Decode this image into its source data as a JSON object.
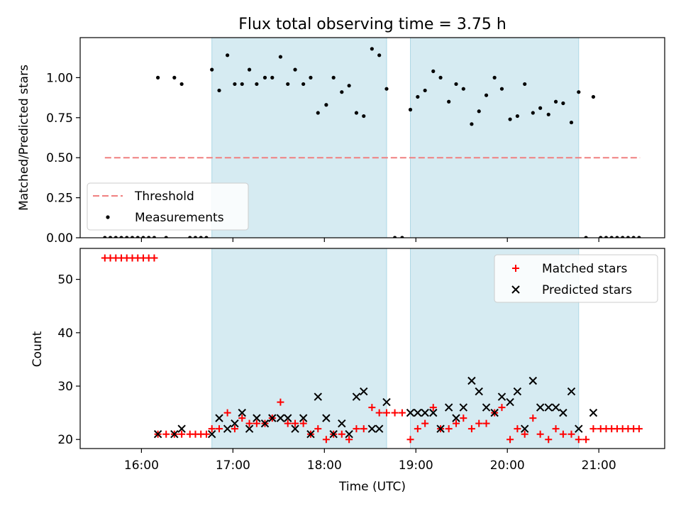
{
  "chart_data": [
    {
      "type": "scatter",
      "title": "Flux total observing time = 3.75 h",
      "ylabel": "Matched/Predicted stars",
      "xlim": [
        15.33,
        21.72
      ],
      "ylim": [
        0,
        1.25
      ],
      "y_ticks": [
        0.0,
        0.25,
        0.5,
        0.75,
        1.0
      ],
      "y_tick_labels": [
        "0.00",
        "0.25",
        "0.50",
        "0.75",
        "1.00"
      ],
      "shaded_intervals": [
        [
          16.77,
          18.68
        ],
        [
          18.94,
          20.78
        ]
      ],
      "legend": {
        "placement": "lower-left",
        "entries": [
          "Threshold",
          "Measurements"
        ]
      },
      "series": [
        {
          "name": "Threshold",
          "kind": "dashed-line",
          "color": "#f08080",
          "x": [
            15.6,
            21.45
          ],
          "y": [
            0.5,
            0.5
          ]
        },
        {
          "name": "Measurements",
          "kind": "points",
          "color": "#000000",
          "x": [
            15.6,
            15.66,
            15.72,
            15.78,
            15.84,
            15.9,
            15.96,
            16.02,
            16.08,
            16.14,
            16.18,
            16.27,
            16.36,
            16.44,
            16.53,
            16.59,
            16.65,
            16.71,
            16.77,
            16.85,
            16.94,
            17.02,
            17.1,
            17.18,
            17.26,
            17.35,
            17.43,
            17.52,
            17.6,
            17.68,
            17.77,
            17.85,
            17.93,
            18.02,
            18.1,
            18.19,
            18.27,
            18.35,
            18.43,
            18.52,
            18.6,
            18.68,
            18.77,
            18.85,
            18.94,
            19.02,
            19.1,
            19.19,
            19.27,
            19.36,
            19.44,
            19.52,
            19.61,
            19.69,
            19.77,
            19.86,
            19.94,
            20.03,
            20.11,
            20.19,
            20.28,
            20.36,
            20.45,
            20.53,
            20.61,
            20.7,
            20.78,
            20.86,
            20.94,
            21.02,
            21.08,
            21.14,
            21.2,
            21.26,
            21.32,
            21.38,
            21.44
          ],
          "y": [
            0.0,
            0.0,
            0.0,
            0.0,
            0.0,
            0.0,
            0.0,
            0.0,
            0.0,
            0.0,
            1.0,
            0.0,
            1.0,
            0.96,
            0.0,
            0.0,
            0.0,
            0.0,
            1.05,
            0.92,
            1.14,
            0.96,
            0.96,
            1.05,
            0.96,
            1.0,
            1.0,
            1.13,
            0.96,
            1.05,
            0.96,
            1.0,
            0.78,
            0.83,
            1.0,
            0.91,
            0.95,
            0.78,
            0.76,
            1.18,
            1.14,
            0.93,
            0.0,
            0.0,
            0.8,
            0.88,
            0.92,
            1.04,
            1.0,
            0.85,
            0.96,
            0.93,
            0.71,
            0.79,
            0.89,
            1.0,
            0.93,
            0.74,
            0.76,
            0.96,
            0.78,
            0.81,
            0.77,
            0.85,
            0.84,
            0.72,
            0.91,
            0.0,
            0.88,
            0.0,
            0.0,
            0.0,
            0.0,
            0.0,
            0.0,
            0.0,
            0.0
          ]
        }
      ]
    },
    {
      "type": "scatter",
      "xlabel": "Time (UTC)",
      "ylabel": "Count",
      "xlim": [
        15.33,
        21.72
      ],
      "ylim": [
        18.3,
        55.8
      ],
      "y_ticks": [
        20,
        30,
        40,
        50
      ],
      "y_tick_labels": [
        "20",
        "30",
        "40",
        "50"
      ],
      "x_ticks": [
        16,
        17,
        18,
        19,
        20,
        21
      ],
      "x_tick_labels": [
        "16:00",
        "17:00",
        "18:00",
        "19:00",
        "20:00",
        "21:00"
      ],
      "shaded_intervals": [
        [
          16.77,
          18.68
        ],
        [
          18.94,
          20.78
        ]
      ],
      "legend": {
        "placement": "top-right",
        "entries": [
          "Matched stars",
          "Predicted stars"
        ]
      },
      "series": [
        {
          "name": "Matched stars",
          "marker": "plus",
          "color": "#ff0000",
          "x": [
            15.6,
            15.66,
            15.72,
            15.78,
            15.84,
            15.9,
            15.96,
            16.02,
            16.08,
            16.14,
            16.18,
            16.27,
            16.36,
            16.44,
            16.53,
            16.59,
            16.65,
            16.71,
            16.77,
            16.85,
            16.94,
            17.02,
            17.1,
            17.18,
            17.26,
            17.35,
            17.43,
            17.52,
            17.6,
            17.68,
            17.77,
            17.85,
            17.93,
            18.02,
            18.1,
            18.19,
            18.27,
            18.35,
            18.43,
            18.52,
            18.6,
            18.68,
            18.77,
            18.85,
            18.94,
            19.02,
            19.1,
            19.19,
            19.27,
            19.36,
            19.44,
            19.52,
            19.61,
            19.69,
            19.77,
            19.86,
            19.94,
            20.03,
            20.11,
            20.19,
            20.28,
            20.36,
            20.45,
            20.53,
            20.61,
            20.7,
            20.78,
            20.86,
            20.94,
            21.02,
            21.08,
            21.14,
            21.2,
            21.26,
            21.32,
            21.38,
            21.44
          ],
          "y": [
            54,
            54,
            54,
            54,
            54,
            54,
            54,
            54,
            54,
            54,
            21,
            21,
            21,
            21,
            21,
            21,
            21,
            21,
            22,
            22,
            25,
            22,
            24,
            23,
            23,
            23,
            24,
            27,
            23,
            23,
            23,
            21,
            22,
            20,
            21,
            21,
            20,
            22,
            22,
            26,
            25,
            25,
            25,
            25,
            20,
            22,
            23,
            26,
            22,
            22,
            23,
            24,
            22,
            23,
            23,
            25,
            26,
            20,
            22,
            21,
            24,
            21,
            20,
            22,
            21,
            21,
            20,
            20,
            22,
            22,
            22,
            22,
            22,
            22,
            22,
            22,
            22
          ]
        },
        {
          "name": "Predicted stars",
          "marker": "x",
          "color": "#000000",
          "x": [
            16.18,
            16.36,
            16.44,
            16.77,
            16.85,
            16.94,
            17.02,
            17.1,
            17.18,
            17.26,
            17.35,
            17.43,
            17.52,
            17.6,
            17.68,
            17.77,
            17.85,
            17.93,
            18.02,
            18.1,
            18.19,
            18.27,
            18.35,
            18.43,
            18.52,
            18.6,
            18.68,
            18.94,
            19.02,
            19.1,
            19.19,
            19.27,
            19.36,
            19.44,
            19.52,
            19.61,
            19.69,
            19.77,
            19.86,
            19.94,
            20.03,
            20.11,
            20.19,
            20.28,
            20.36,
            20.45,
            20.53,
            20.61,
            20.7,
            20.78,
            20.94
          ],
          "y": [
            21,
            21,
            22,
            21,
            24,
            22,
            23,
            25,
            22,
            24,
            23,
            24,
            24,
            24,
            22,
            24,
            21,
            28,
            24,
            21,
            23,
            21,
            28,
            29,
            22,
            22,
            27,
            25,
            25,
            25,
            25,
            22,
            26,
            24,
            26,
            31,
            29,
            26,
            25,
            28,
            27,
            29,
            22,
            31,
            26,
            26,
            26,
            25,
            29,
            22,
            25
          ]
        }
      ]
    }
  ]
}
